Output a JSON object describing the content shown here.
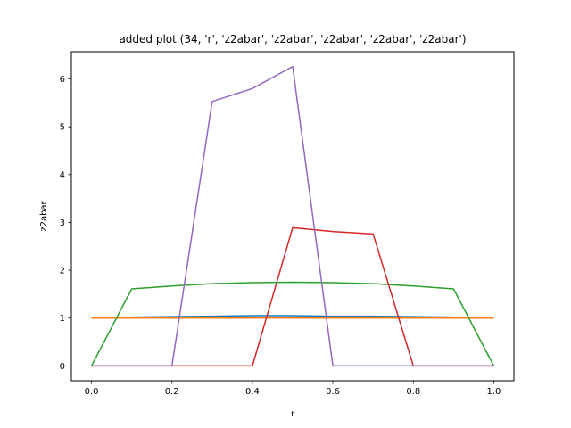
{
  "chart_data": {
    "type": "line",
    "title": "added plot (34, 'r', 'z2abar', 'z2abar', 'z2abar', 'z2abar', 'z2abar')",
    "xlabel": "r",
    "ylabel": "z2abar",
    "xlim": [
      -0.05,
      1.05
    ],
    "ylim": [
      -0.31,
      6.57
    ],
    "xticks": [
      0.0,
      0.2,
      0.4,
      0.6,
      0.8,
      1.0
    ],
    "xtick_labels": [
      "0.0",
      "0.2",
      "0.4",
      "0.6",
      "0.8",
      "1.0"
    ],
    "yticks": [
      0,
      1,
      2,
      3,
      4,
      5,
      6
    ],
    "ytick_labels": [
      "0",
      "1",
      "2",
      "3",
      "4",
      "5",
      "6"
    ],
    "grid": false,
    "x": [
      0.0,
      0.1,
      0.2,
      0.3,
      0.4,
      0.5,
      0.6,
      0.7,
      0.8,
      0.9,
      1.0
    ],
    "series": [
      {
        "color": "#1f77b4",
        "values": [
          1.0,
          1.02,
          1.03,
          1.04,
          1.05,
          1.05,
          1.04,
          1.04,
          1.03,
          1.02,
          1.0
        ]
      },
      {
        "color": "#ff7f0e",
        "values": [
          1.0,
          1.0,
          1.0,
          1.0,
          1.0,
          1.0,
          1.0,
          1.0,
          1.0,
          1.0,
          1.0
        ]
      },
      {
        "color": "#2ca02c",
        "values": [
          0.0,
          1.61,
          1.67,
          1.72,
          1.74,
          1.75,
          1.74,
          1.72,
          1.67,
          1.61,
          0.0
        ]
      },
      {
        "color": "#d62728",
        "values": [
          0.0,
          0.0,
          0.0,
          0.0,
          0.0,
          2.89,
          2.81,
          2.76,
          0.0,
          0.0,
          0.0
        ]
      },
      {
        "color": "#9467bd",
        "values": [
          0.0,
          0.0,
          0.0,
          5.53,
          5.8,
          6.26,
          0.0,
          0.0,
          0.0,
          0.0,
          0.0
        ]
      }
    ]
  }
}
